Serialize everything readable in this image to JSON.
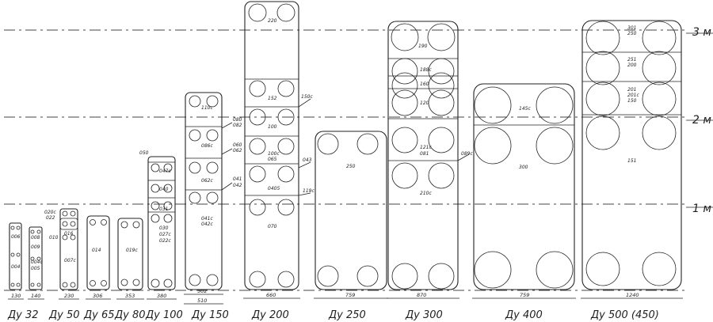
{
  "levels": [
    {
      "label": "3 м",
      "value": 3
    },
    {
      "label": "2 м",
      "value": 2
    },
    {
      "label": "1 м",
      "value": 1
    }
  ],
  "groups": [
    {
      "label": "Ду 32"
    },
    {
      "label": "Ду 50"
    },
    {
      "label": "Ду 65"
    },
    {
      "label": "Ду 80"
    },
    {
      "label": "Ду 100"
    },
    {
      "label": "Ду 150"
    },
    {
      "label": "Ду 200"
    },
    {
      "label": "Ду 250"
    },
    {
      "label": "Ду 300"
    },
    {
      "label": "Ду 400"
    },
    {
      "label": "Ду 500 (450)"
    }
  ],
  "widths": [
    "130",
    "140",
    "230",
    "306",
    "353",
    "380",
    "502",
    "510",
    "660",
    "759",
    "870",
    "759",
    "1240"
  ],
  "markings": [
    "006",
    "004",
    "008",
    "009",
    "004c",
    "005",
    "020c",
    "022",
    "010",
    "016",
    "007c",
    "014",
    "019c",
    "019",
    "050",
    "047c",
    "040",
    "031",
    "030",
    "027c",
    "022c",
    "025",
    "110c",
    "086c",
    "062c",
    "041c",
    "042c",
    "080",
    "082",
    "060",
    "062",
    "041",
    "042",
    "220",
    "152",
    "150c",
    "100",
    "100c",
    "065",
    "0405",
    "070",
    "043",
    "119c",
    "250",
    "190",
    "188c",
    "160",
    "120",
    "121c",
    "081",
    "089c",
    "210c",
    "145c",
    "300",
    "301",
    "250",
    "251",
    "200",
    "201",
    "201c",
    "150",
    "151"
  ]
}
